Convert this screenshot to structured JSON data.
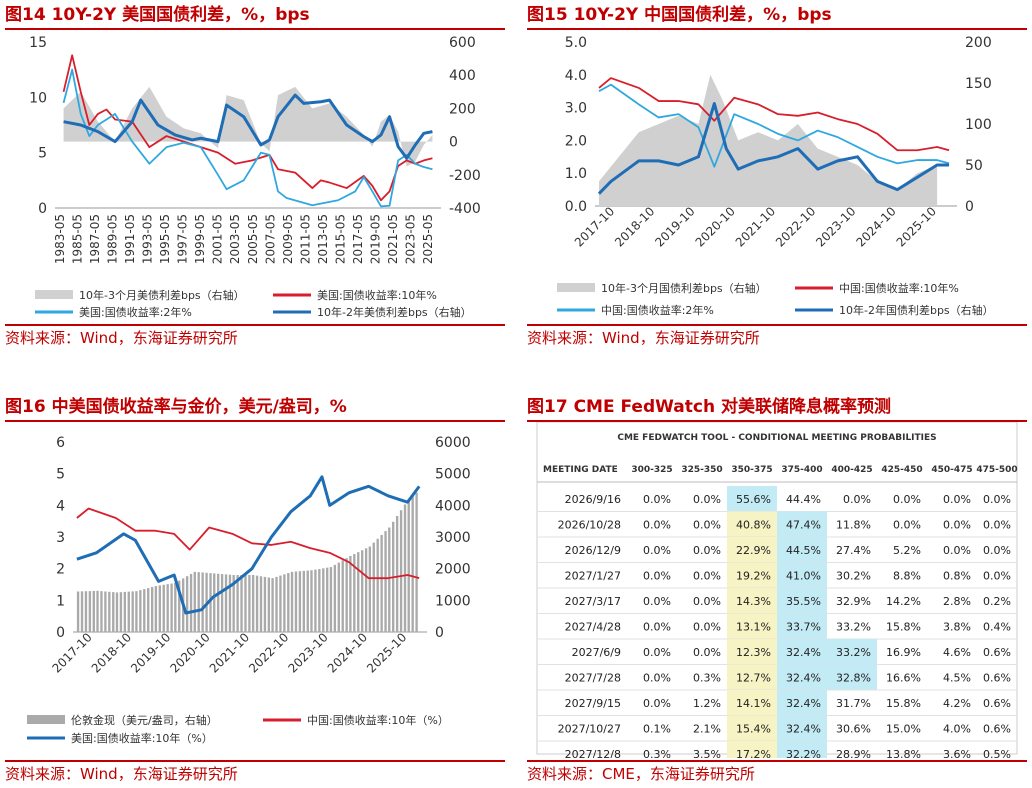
{
  "fig14": {
    "title": "图14  10Y-2Y 美国国债利差，%，bps",
    "source": "资料来源：Wind，东海证券研究所",
    "chart_data": {
      "type": "line",
      "x_ticks": [
        "1983-05",
        "1985-05",
        "1987-05",
        "1989-05",
        "1991-05",
        "1993-05",
        "1995-05",
        "1997-05",
        "1999-05",
        "2001-05",
        "2003-05",
        "2005-05",
        "2007-05",
        "2009-05",
        "2011-05",
        "2013-05",
        "2015-05",
        "2017-05",
        "2019-05",
        "2021-05",
        "2023-05",
        "2025-05"
      ],
      "ylim_left": [
        0,
        15
      ],
      "yticks_left": [
        "0",
        "5",
        "10",
        "15"
      ],
      "ylim_right": [
        -400,
        600
      ],
      "yticks_right": [
        "-400",
        "-200",
        "0",
        "200",
        "400",
        "600"
      ],
      "series": [
        {
          "name": "10年-3个月美债利差bps（右轴）",
          "axis": "right",
          "type": "area",
          "color": "#d0d0d0",
          "x": [
            1983,
            1985,
            1987,
            1989,
            1991,
            1993,
            1995,
            1997,
            1999,
            2001,
            2002,
            2004,
            2006,
            2007,
            2008,
            2010,
            2012,
            2014,
            2016,
            2018,
            2019,
            2020,
            2021,
            2022,
            2023,
            2024,
            2025,
            2026
          ],
          "values": [
            200,
            300,
            120,
            0,
            200,
            330,
            150,
            80,
            50,
            -40,
            280,
            250,
            -10,
            -60,
            280,
            330,
            200,
            230,
            150,
            40,
            -30,
            120,
            160,
            60,
            -150,
            -120,
            -20,
            40
          ]
        },
        {
          "name": "美国:国债收益率:10年%",
          "axis": "left",
          "color": "#d81e2c",
          "x": [
            1983,
            1984,
            1985,
            1986,
            1987,
            1988,
            1989,
            1991,
            1993,
            1995,
            1997,
            1999,
            2001,
            2003,
            2005,
            2007,
            2008,
            2010,
            2012,
            2013,
            2014,
            2016,
            2018,
            2019,
            2020,
            2021,
            2022,
            2023,
            2024,
            2025,
            2026
          ],
          "values": [
            10.5,
            13.8,
            10.5,
            7.5,
            8.5,
            8.9,
            8.0,
            7.8,
            5.5,
            6.5,
            6.0,
            5.5,
            5.0,
            4.0,
            4.3,
            4.8,
            3.5,
            3.2,
            1.8,
            2.5,
            2.3,
            1.8,
            2.9,
            2.0,
            0.7,
            1.5,
            3.8,
            4.3,
            4.0,
            4.3,
            4.5
          ]
        },
        {
          "name": "美国:国债收益率:2年%",
          "axis": "left",
          "color": "#2fa8df",
          "x": [
            1983,
            1984,
            1985,
            1986,
            1987,
            1988,
            1989,
            1991,
            1993,
            1995,
            1997,
            1999,
            2001,
            2002,
            2004,
            2006,
            2007,
            2008,
            2009,
            2012,
            2015,
            2017,
            2018,
            2019,
            2020,
            2021,
            2022,
            2023,
            2024,
            2025,
            2026
          ],
          "values": [
            9.5,
            12.5,
            8.5,
            6.5,
            7.5,
            8.0,
            8.5,
            6.0,
            4.0,
            5.5,
            5.9,
            5.5,
            3.0,
            1.7,
            2.5,
            5.0,
            4.8,
            1.5,
            0.9,
            0.25,
            0.7,
            1.5,
            2.8,
            1.5,
            0.15,
            0.2,
            4.3,
            4.8,
            4.0,
            3.7,
            3.5
          ]
        },
        {
          "name": "10年-2年美债利差bps（右轴）",
          "axis": "right",
          "color": "#1f6db5",
          "x": [
            1983,
            1985,
            1987,
            1989,
            1991,
            1992,
            1994,
            1996,
            1998,
            1999,
            2001,
            2002,
            2004,
            2006,
            2007,
            2008,
            2010,
            2011,
            2013,
            2014,
            2016,
            2018,
            2019,
            2020,
            2021,
            2022,
            2023,
            2024,
            2025,
            2026
          ],
          "values": [
            120,
            100,
            60,
            0,
            120,
            250,
            100,
            40,
            10,
            20,
            0,
            220,
            150,
            -20,
            10,
            150,
            280,
            230,
            240,
            250,
            100,
            30,
            0,
            40,
            150,
            -30,
            -100,
            -20,
            50,
            60
          ]
        }
      ]
    }
  },
  "fig15": {
    "title": "图15  10Y-2Y 中国国债利差，%，bps",
    "source": "资料来源：Wind，东海证券研究所",
    "chart_data": {
      "type": "line",
      "x_ticks": [
        "2017-10",
        "2018-10",
        "2019-10",
        "2020-10",
        "2021-10",
        "2022-10",
        "2023-10",
        "2024-10",
        "2025-10"
      ],
      "ylim_left": [
        0,
        5
      ],
      "yticks_left": [
        "0.0",
        "1.0",
        "2.0",
        "3.0",
        "4.0",
        "5.0"
      ],
      "ylim_right": [
        0,
        200
      ],
      "yticks_right": [
        "0",
        "50",
        "100",
        "150",
        "200"
      ],
      "series": [
        {
          "name": "10年-3个月国债利差bps（右轴）",
          "axis": "right",
          "type": "area",
          "color": "#d0d0d0",
          "x": [
            2017.5,
            2018,
            2018.5,
            2019,
            2019.5,
            2020,
            2020.3,
            2020.6,
            2021,
            2021.5,
            2022,
            2022.5,
            2023,
            2023.5,
            2024,
            2024.5,
            2025,
            2025.5,
            2026
          ],
          "values": [
            30,
            60,
            90,
            100,
            110,
            100,
            160,
            130,
            80,
            90,
            80,
            100,
            70,
            60,
            50,
            30,
            20,
            40,
            50
          ]
        },
        {
          "name": "中国:国债收益率:10年%",
          "axis": "left",
          "color": "#d81e2c",
          "x": [
            2017.5,
            2017.8,
            2018.5,
            2019,
            2019.5,
            2020,
            2020.4,
            2020.9,
            2021.5,
            2022,
            2022.5,
            2023,
            2023.5,
            2024,
            2024.5,
            2025,
            2025.5,
            2026,
            2026.3
          ],
          "values": [
            3.6,
            3.9,
            3.6,
            3.2,
            3.2,
            3.1,
            2.6,
            3.3,
            3.1,
            2.8,
            2.75,
            2.85,
            2.65,
            2.5,
            2.2,
            1.7,
            1.7,
            1.8,
            1.7
          ]
        },
        {
          "name": "中国:国债收益率:2年%",
          "axis": "left",
          "color": "#2fa8df",
          "x": [
            2017.5,
            2017.8,
            2018.5,
            2019,
            2019.5,
            2020,
            2020.4,
            2020.9,
            2021.5,
            2022,
            2022.5,
            2023,
            2023.5,
            2024,
            2024.5,
            2025,
            2025.5,
            2026,
            2026.3
          ],
          "values": [
            3.5,
            3.7,
            3.1,
            2.7,
            2.8,
            2.4,
            1.2,
            2.8,
            2.5,
            2.2,
            2.0,
            2.3,
            2.1,
            1.8,
            1.5,
            1.3,
            1.4,
            1.4,
            1.3
          ]
        },
        {
          "name": "10年-2年国债利差bps（右轴）",
          "axis": "right",
          "color": "#1f6db5",
          "x": [
            2017.5,
            2017.8,
            2018.5,
            2019,
            2019.5,
            2020,
            2020.4,
            2020.7,
            2021,
            2021.5,
            2022,
            2022.5,
            2023,
            2023.5,
            2024,
            2024.5,
            2025,
            2025.5,
            2026,
            2026.3
          ],
          "values": [
            15,
            30,
            55,
            55,
            50,
            60,
            125,
            70,
            45,
            55,
            60,
            70,
            45,
            55,
            60,
            30,
            20,
            35,
            50,
            50
          ]
        }
      ]
    }
  },
  "fig16": {
    "title": "图16  中美国债收益率与金价，美元/盎司，%",
    "source": "资料来源：Wind，东海证券研究所",
    "chart_data": {
      "type": "line",
      "x_ticks": [
        "2017-10",
        "2018-10",
        "2019-10",
        "2020-10",
        "2021-10",
        "2022-10",
        "2023-10",
        "2024-10",
        "2025-10"
      ],
      "ylim_left": [
        0,
        6
      ],
      "yticks_left": [
        "0",
        "1",
        "2",
        "3",
        "4",
        "5",
        "6"
      ],
      "ylim_right": [
        0,
        6000
      ],
      "yticks_right": [
        "0",
        "1000",
        "2000",
        "3000",
        "4000",
        "5000",
        "6000"
      ],
      "series": [
        {
          "name": "伦敦金现（美元/盎司，右轴）",
          "axis": "right",
          "type": "bar",
          "color": "#aaaaaa",
          "x": [
            2017.5,
            2018,
            2018.5,
            2019,
            2019.5,
            2020,
            2020.5,
            2021,
            2021.5,
            2022,
            2022.5,
            2023,
            2023.5,
            2024,
            2024.5,
            2025,
            2025.5,
            2026,
            2026.3
          ],
          "values": [
            1280,
            1300,
            1250,
            1290,
            1450,
            1550,
            1900,
            1850,
            1800,
            1800,
            1700,
            1900,
            1950,
            2050,
            2400,
            2700,
            3300,
            4200,
            4500
          ]
        },
        {
          "name": "中国:国债收益率:10年（%）",
          "axis": "left",
          "color": "#d81e2c",
          "x": [
            2017.5,
            2017.8,
            2018.5,
            2019,
            2019.5,
            2020,
            2020.4,
            2020.9,
            2021.5,
            2022,
            2022.5,
            2023,
            2023.5,
            2024,
            2024.5,
            2025,
            2025.5,
            2026,
            2026.3
          ],
          "values": [
            3.6,
            3.9,
            3.6,
            3.2,
            3.2,
            3.1,
            2.6,
            3.3,
            3.1,
            2.8,
            2.75,
            2.85,
            2.65,
            2.5,
            2.2,
            1.7,
            1.7,
            1.8,
            1.7
          ]
        },
        {
          "name": "美国:国债收益率:10年（%）",
          "axis": "left",
          "color": "#1f6db5",
          "x": [
            2017.5,
            2018,
            2018.7,
            2019,
            2019.6,
            2020,
            2020.3,
            2020.7,
            2021,
            2021.5,
            2022,
            2022.5,
            2023,
            2023.5,
            2023.8,
            2024,
            2024.5,
            2025,
            2025.5,
            2026,
            2026.3
          ],
          "values": [
            2.3,
            2.5,
            3.1,
            2.9,
            1.6,
            1.8,
            0.6,
            0.7,
            1.1,
            1.5,
            2.0,
            3.0,
            3.8,
            4.3,
            4.9,
            4.0,
            4.4,
            4.6,
            4.3,
            4.1,
            4.6
          ]
        }
      ]
    }
  },
  "fig17": {
    "title": "图17  CME FedWatch 对美联储降息概率预测",
    "source": "资料来源：CME，东海证券研究所",
    "chart_data": {
      "type": "table",
      "table_title": "CME FEDWATCH TOOL - CONDITIONAL MEETING PROBABILITIES",
      "columns": [
        "MEETING DATE",
        "300-325",
        "325-350",
        "350-375",
        "375-400",
        "400-425",
        "425-450",
        "450-475",
        "475-500"
      ],
      "rows": [
        [
          "2026/9/16",
          "0.0%",
          "0.0%",
          "55.6%",
          "44.4%",
          "0.0%",
          "0.0%",
          "0.0%",
          "0.0%"
        ],
        [
          "2026/10/28",
          "0.0%",
          "0.0%",
          "40.8%",
          "47.4%",
          "11.8%",
          "0.0%",
          "0.0%",
          "0.0%"
        ],
        [
          "2026/12/9",
          "0.0%",
          "0.0%",
          "22.9%",
          "44.5%",
          "27.4%",
          "5.2%",
          "0.0%",
          "0.0%"
        ],
        [
          "2027/1/27",
          "0.0%",
          "0.0%",
          "19.2%",
          "41.0%",
          "30.2%",
          "8.8%",
          "0.8%",
          "0.0%"
        ],
        [
          "2027/3/17",
          "0.0%",
          "0.0%",
          "14.3%",
          "35.5%",
          "32.9%",
          "14.2%",
          "2.8%",
          "0.2%"
        ],
        [
          "2027/4/28",
          "0.0%",
          "0.0%",
          "13.1%",
          "33.7%",
          "33.2%",
          "15.8%",
          "3.8%",
          "0.4%"
        ],
        [
          "2027/6/9",
          "0.0%",
          "0.0%",
          "12.3%",
          "32.4%",
          "33.2%",
          "16.9%",
          "4.6%",
          "0.6%"
        ],
        [
          "2027/7/28",
          "0.0%",
          "0.3%",
          "12.7%",
          "32.4%",
          "32.8%",
          "16.6%",
          "4.5%",
          "0.6%"
        ],
        [
          "2027/9/15",
          "0.0%",
          "1.2%",
          "14.1%",
          "32.4%",
          "31.7%",
          "15.8%",
          "4.2%",
          "0.6%"
        ],
        [
          "2027/10/27",
          "0.1%",
          "2.1%",
          "15.4%",
          "32.4%",
          "30.6%",
          "15.0%",
          "4.0%",
          "0.6%"
        ],
        [
          "2027/12/8",
          "0.3%",
          "3.5%",
          "17.2%",
          "32.2%",
          "28.9%",
          "13.8%",
          "3.6%",
          "0.5%"
        ]
      ],
      "highlight_yellow_col": 3,
      "highlight_blue_cells": [
        [
          0,
          3
        ],
        [
          1,
          4
        ],
        [
          2,
          4
        ],
        [
          3,
          4
        ],
        [
          4,
          4
        ],
        [
          5,
          4
        ],
        [
          6,
          4
        ],
        [
          6,
          5
        ],
        [
          7,
          4
        ],
        [
          7,
          5
        ],
        [
          8,
          4
        ],
        [
          9,
          4
        ],
        [
          10,
          4
        ]
      ],
      "colors": {
        "yellow": "#f6f3c4",
        "blue": "#c3ebf5"
      }
    }
  }
}
